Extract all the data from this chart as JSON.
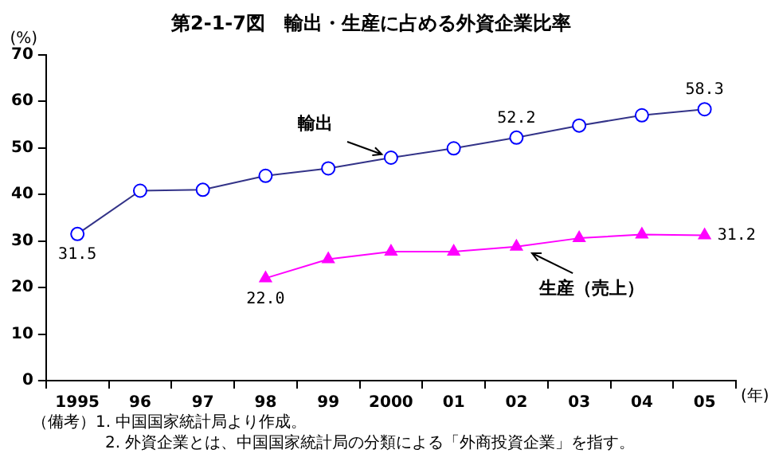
{
  "chart_data": {
    "type": "line",
    "title": "第2-1-7図　輸出・生産に占める外資企業比率",
    "ylabel": "(%)",
    "xlabel": "(年)",
    "categories": [
      "1995",
      "96",
      "97",
      "98",
      "99",
      "2000",
      "01",
      "02",
      "03",
      "04",
      "05"
    ],
    "ylim": [
      0,
      70
    ],
    "yticks": [
      0,
      10,
      20,
      30,
      40,
      50,
      60,
      70
    ],
    "grid": false,
    "legend": false,
    "line_style": "solid",
    "series": [
      {
        "name": "輸出",
        "color": "#0000ff",
        "marker": "circle",
        "values": [
          31.5,
          40.8,
          41.0,
          44.0,
          45.6,
          47.9,
          49.9,
          52.2,
          54.8,
          57.0,
          58.3
        ],
        "value_labels": [
          "31.5",
          null,
          null,
          null,
          null,
          null,
          null,
          "52.2",
          null,
          null,
          "58.3"
        ]
      },
      {
        "name": "生産（売上）",
        "color": "#ff00ff",
        "marker": "triangle",
        "values": [
          null,
          null,
          null,
          22.0,
          26.1,
          27.7,
          27.7,
          28.8,
          30.6,
          31.4,
          31.2
        ],
        "value_labels": [
          null,
          null,
          null,
          "22.0",
          null,
          null,
          null,
          null,
          null,
          null,
          "31.2"
        ]
      }
    ],
    "annotations": [
      "（備考）1.  中国国家統計局より作成。",
      "2.  外資企業とは、中国国家統計局の分類による「外商投資企業」を指す。"
    ]
  }
}
